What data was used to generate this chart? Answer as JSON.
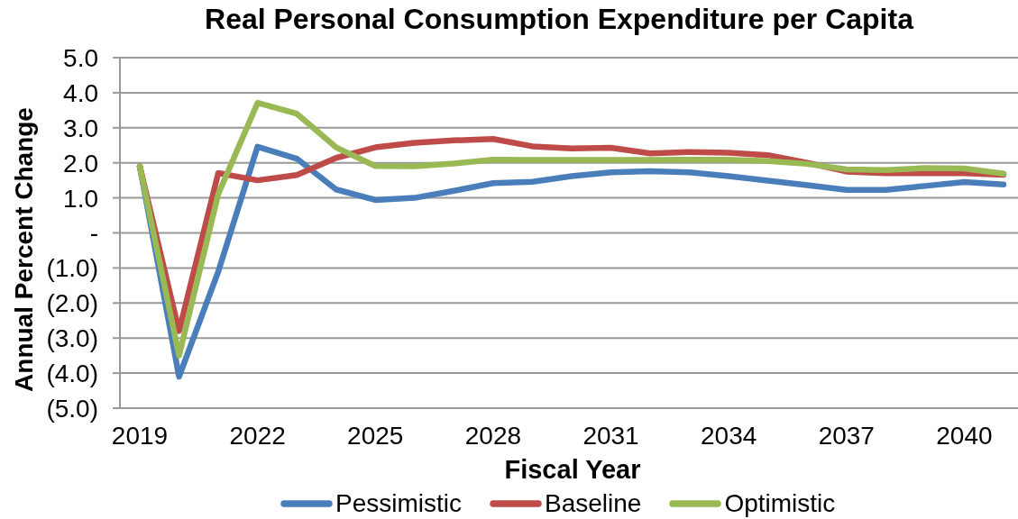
{
  "chart_data": {
    "type": "line",
    "title": "Real Personal Consumption Expenditure per Capita",
    "xlabel": "Fiscal Year",
    "ylabel": "Annual Percent Change",
    "categories": [
      "2019",
      null,
      null,
      "2022",
      null,
      null,
      "2025",
      null,
      null,
      "2028",
      null,
      null,
      "2031",
      null,
      null,
      "2034",
      null,
      null,
      "2037",
      null,
      null,
      "2040",
      null
    ],
    "series": [
      {
        "name": "Pessimistic",
        "color": "#4a7ebb",
        "values": [
          1.9,
          -4.1,
          -1.1,
          2.46,
          2.12,
          1.24,
          0.94,
          1.0,
          1.2,
          1.42,
          1.46,
          1.62,
          1.73,
          1.76,
          1.73,
          1.62,
          1.49,
          1.36,
          1.23,
          1.23,
          1.34,
          1.45,
          1.38
        ]
      },
      {
        "name": "Baseline",
        "color": "#be4b48",
        "values": [
          1.9,
          -2.8,
          1.71,
          1.5,
          1.65,
          2.14,
          2.44,
          2.57,
          2.64,
          2.68,
          2.47,
          2.41,
          2.43,
          2.27,
          2.31,
          2.29,
          2.22,
          2.0,
          1.75,
          1.7,
          1.7,
          1.7,
          1.66
        ]
      },
      {
        "name": "Optimistic",
        "color": "#98b954",
        "values": [
          1.9,
          -3.5,
          1.11,
          3.71,
          3.4,
          2.44,
          1.91,
          1.9,
          1.98,
          2.09,
          2.08,
          2.08,
          2.08,
          2.08,
          2.09,
          2.09,
          2.05,
          1.97,
          1.81,
          1.79,
          1.85,
          1.84,
          1.69
        ]
      }
    ],
    "ylim": [
      -5,
      5
    ],
    "yticks": [
      {
        "value": 5,
        "label": "5.0"
      },
      {
        "value": 4,
        "label": "4.0"
      },
      {
        "value": 3,
        "label": "3.0"
      },
      {
        "value": 2,
        "label": "2.0"
      },
      {
        "value": 1,
        "label": "1.0"
      },
      {
        "value": 0,
        "label": "-"
      },
      {
        "value": -1,
        "label": "(1.0)"
      },
      {
        "value": -2,
        "label": "(2.0)"
      },
      {
        "value": -3,
        "label": "(3.0)"
      },
      {
        "value": -4,
        "label": "(4.0)"
      },
      {
        "value": -5,
        "label": "(5.0)"
      }
    ],
    "grid": "y",
    "legend": "bottom",
    "line_style": "solid"
  }
}
